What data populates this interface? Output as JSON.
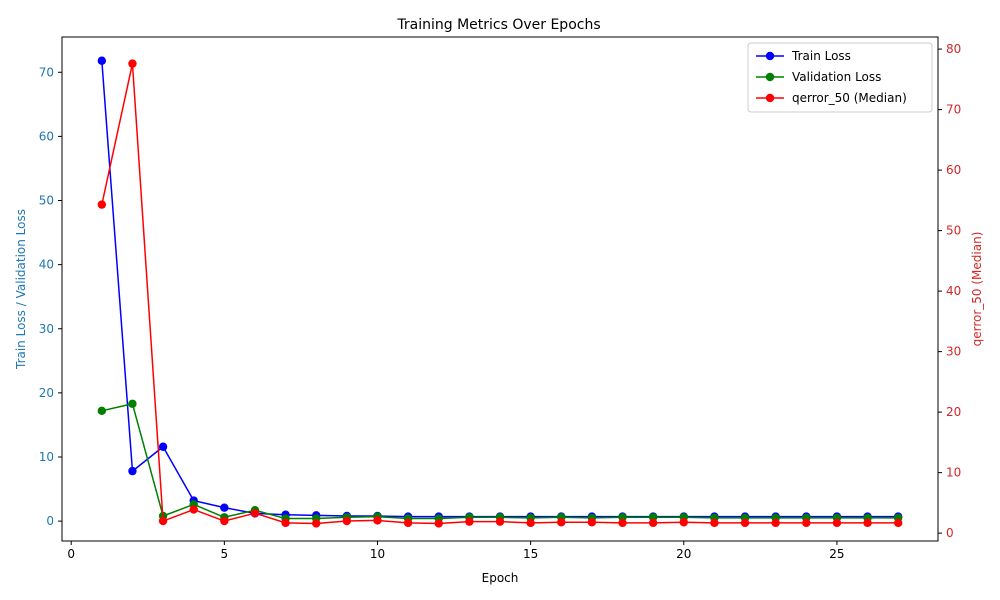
{
  "chart_data": {
    "type": "line",
    "title": "Training Metrics Over Epochs",
    "xlabel": "Epoch",
    "ylabel_left": "Train Loss / Validation Loss",
    "ylabel_right": "qerror_50 (Median)",
    "xlim": [
      -0.3,
      28.3
    ],
    "ylim_left": [
      -3.1,
      75.5
    ],
    "ylim_right": [
      -1.3,
      82.0
    ],
    "x_ticks": [
      0,
      5,
      10,
      15,
      20,
      25
    ],
    "y_ticks_left": [
      0,
      10,
      20,
      30,
      40,
      50,
      60,
      70
    ],
    "y_ticks_right": [
      0,
      10,
      20,
      30,
      40,
      50,
      60,
      70,
      80
    ],
    "x": [
      1,
      2,
      3,
      4,
      5,
      6,
      7,
      8,
      9,
      10,
      11,
      12,
      13,
      14,
      15,
      16,
      17,
      18,
      19,
      20,
      21,
      22,
      23,
      24,
      25,
      26,
      27
    ],
    "series": [
      {
        "name": "Train Loss",
        "axis": "left",
        "color": "#0000ff",
        "values": [
          71.8,
          7.8,
          11.6,
          3.2,
          2.1,
          1.2,
          1.0,
          0.9,
          0.8,
          0.8,
          0.7,
          0.7,
          0.7,
          0.7,
          0.7,
          0.7,
          0.7,
          0.7,
          0.7,
          0.7,
          0.7,
          0.7,
          0.7,
          0.7,
          0.7,
          0.7,
          0.7
        ]
      },
      {
        "name": "Validation Loss",
        "axis": "left",
        "color": "#008000",
        "values": [
          17.2,
          18.3,
          0.8,
          2.6,
          0.6,
          1.7,
          0.4,
          0.4,
          0.6,
          0.7,
          0.4,
          0.4,
          0.6,
          0.6,
          0.5,
          0.6,
          0.5,
          0.6,
          0.6,
          0.6,
          0.5,
          0.5,
          0.5,
          0.5,
          0.5,
          0.5,
          0.5
        ]
      },
      {
        "name": "qerror_50 (Median)",
        "axis": "right",
        "color": "#ff0000",
        "values": [
          54.3,
          77.6,
          2.0,
          3.9,
          2.0,
          3.3,
          1.7,
          1.6,
          2.0,
          2.1,
          1.7,
          1.6,
          1.9,
          1.9,
          1.7,
          1.8,
          1.8,
          1.7,
          1.7,
          1.8,
          1.7,
          1.7,
          1.7,
          1.7,
          1.7,
          1.7,
          1.7
        ]
      }
    ],
    "legend_position": "top-right",
    "grid": false
  }
}
